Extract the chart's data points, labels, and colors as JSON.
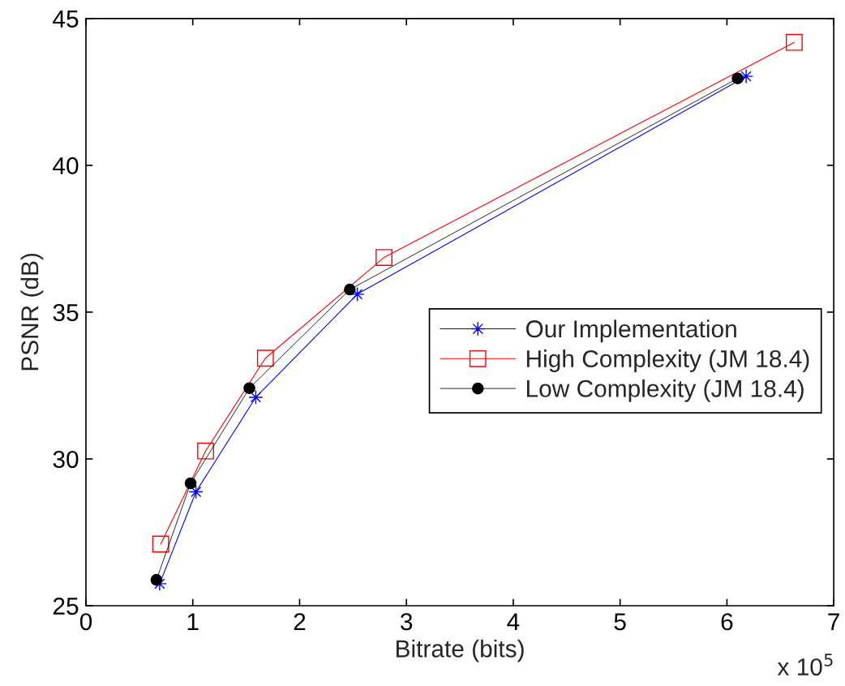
{
  "chart_data": {
    "type": "line",
    "xlabel": "Bitrate (bits)",
    "ylabel": "PSNR (dB)",
    "annotations": [
      "x 10$^{5}$"
    ],
    "xlim": [
      0,
      7
    ],
    "ylim": [
      25,
      45
    ],
    "xticks": [
      0,
      1,
      2,
      3,
      4,
      5,
      6,
      7
    ],
    "yticks": [
      25,
      30,
      35,
      40,
      45
    ],
    "grid": false,
    "legend": "right",
    "line_style": "solid",
    "series": [
      {
        "name": "Our Implementation",
        "color": "#0000ff",
        "marker": "cross",
        "x": [
          0.69,
          1.03,
          1.59,
          2.54,
          6.18
        ],
        "values": [
          25.75,
          28.88,
          32.1,
          35.61,
          43.03
        ]
      },
      {
        "name": "High Complexity (JM 18.4)",
        "color": "#ff0000",
        "marker": "square",
        "x": [
          0.7,
          1.12,
          1.68,
          2.79,
          6.63
        ],
        "values": [
          27.1,
          30.27,
          33.43,
          36.86,
          44.19
        ]
      },
      {
        "name": "Low Complexity (JM 18.4)",
        "color": "#000000",
        "marker": "circle",
        "x": [
          0.66,
          0.98,
          1.53,
          2.47,
          6.1
        ],
        "values": [
          25.88,
          29.17,
          32.41,
          35.77,
          42.96
        ]
      }
    ]
  }
}
